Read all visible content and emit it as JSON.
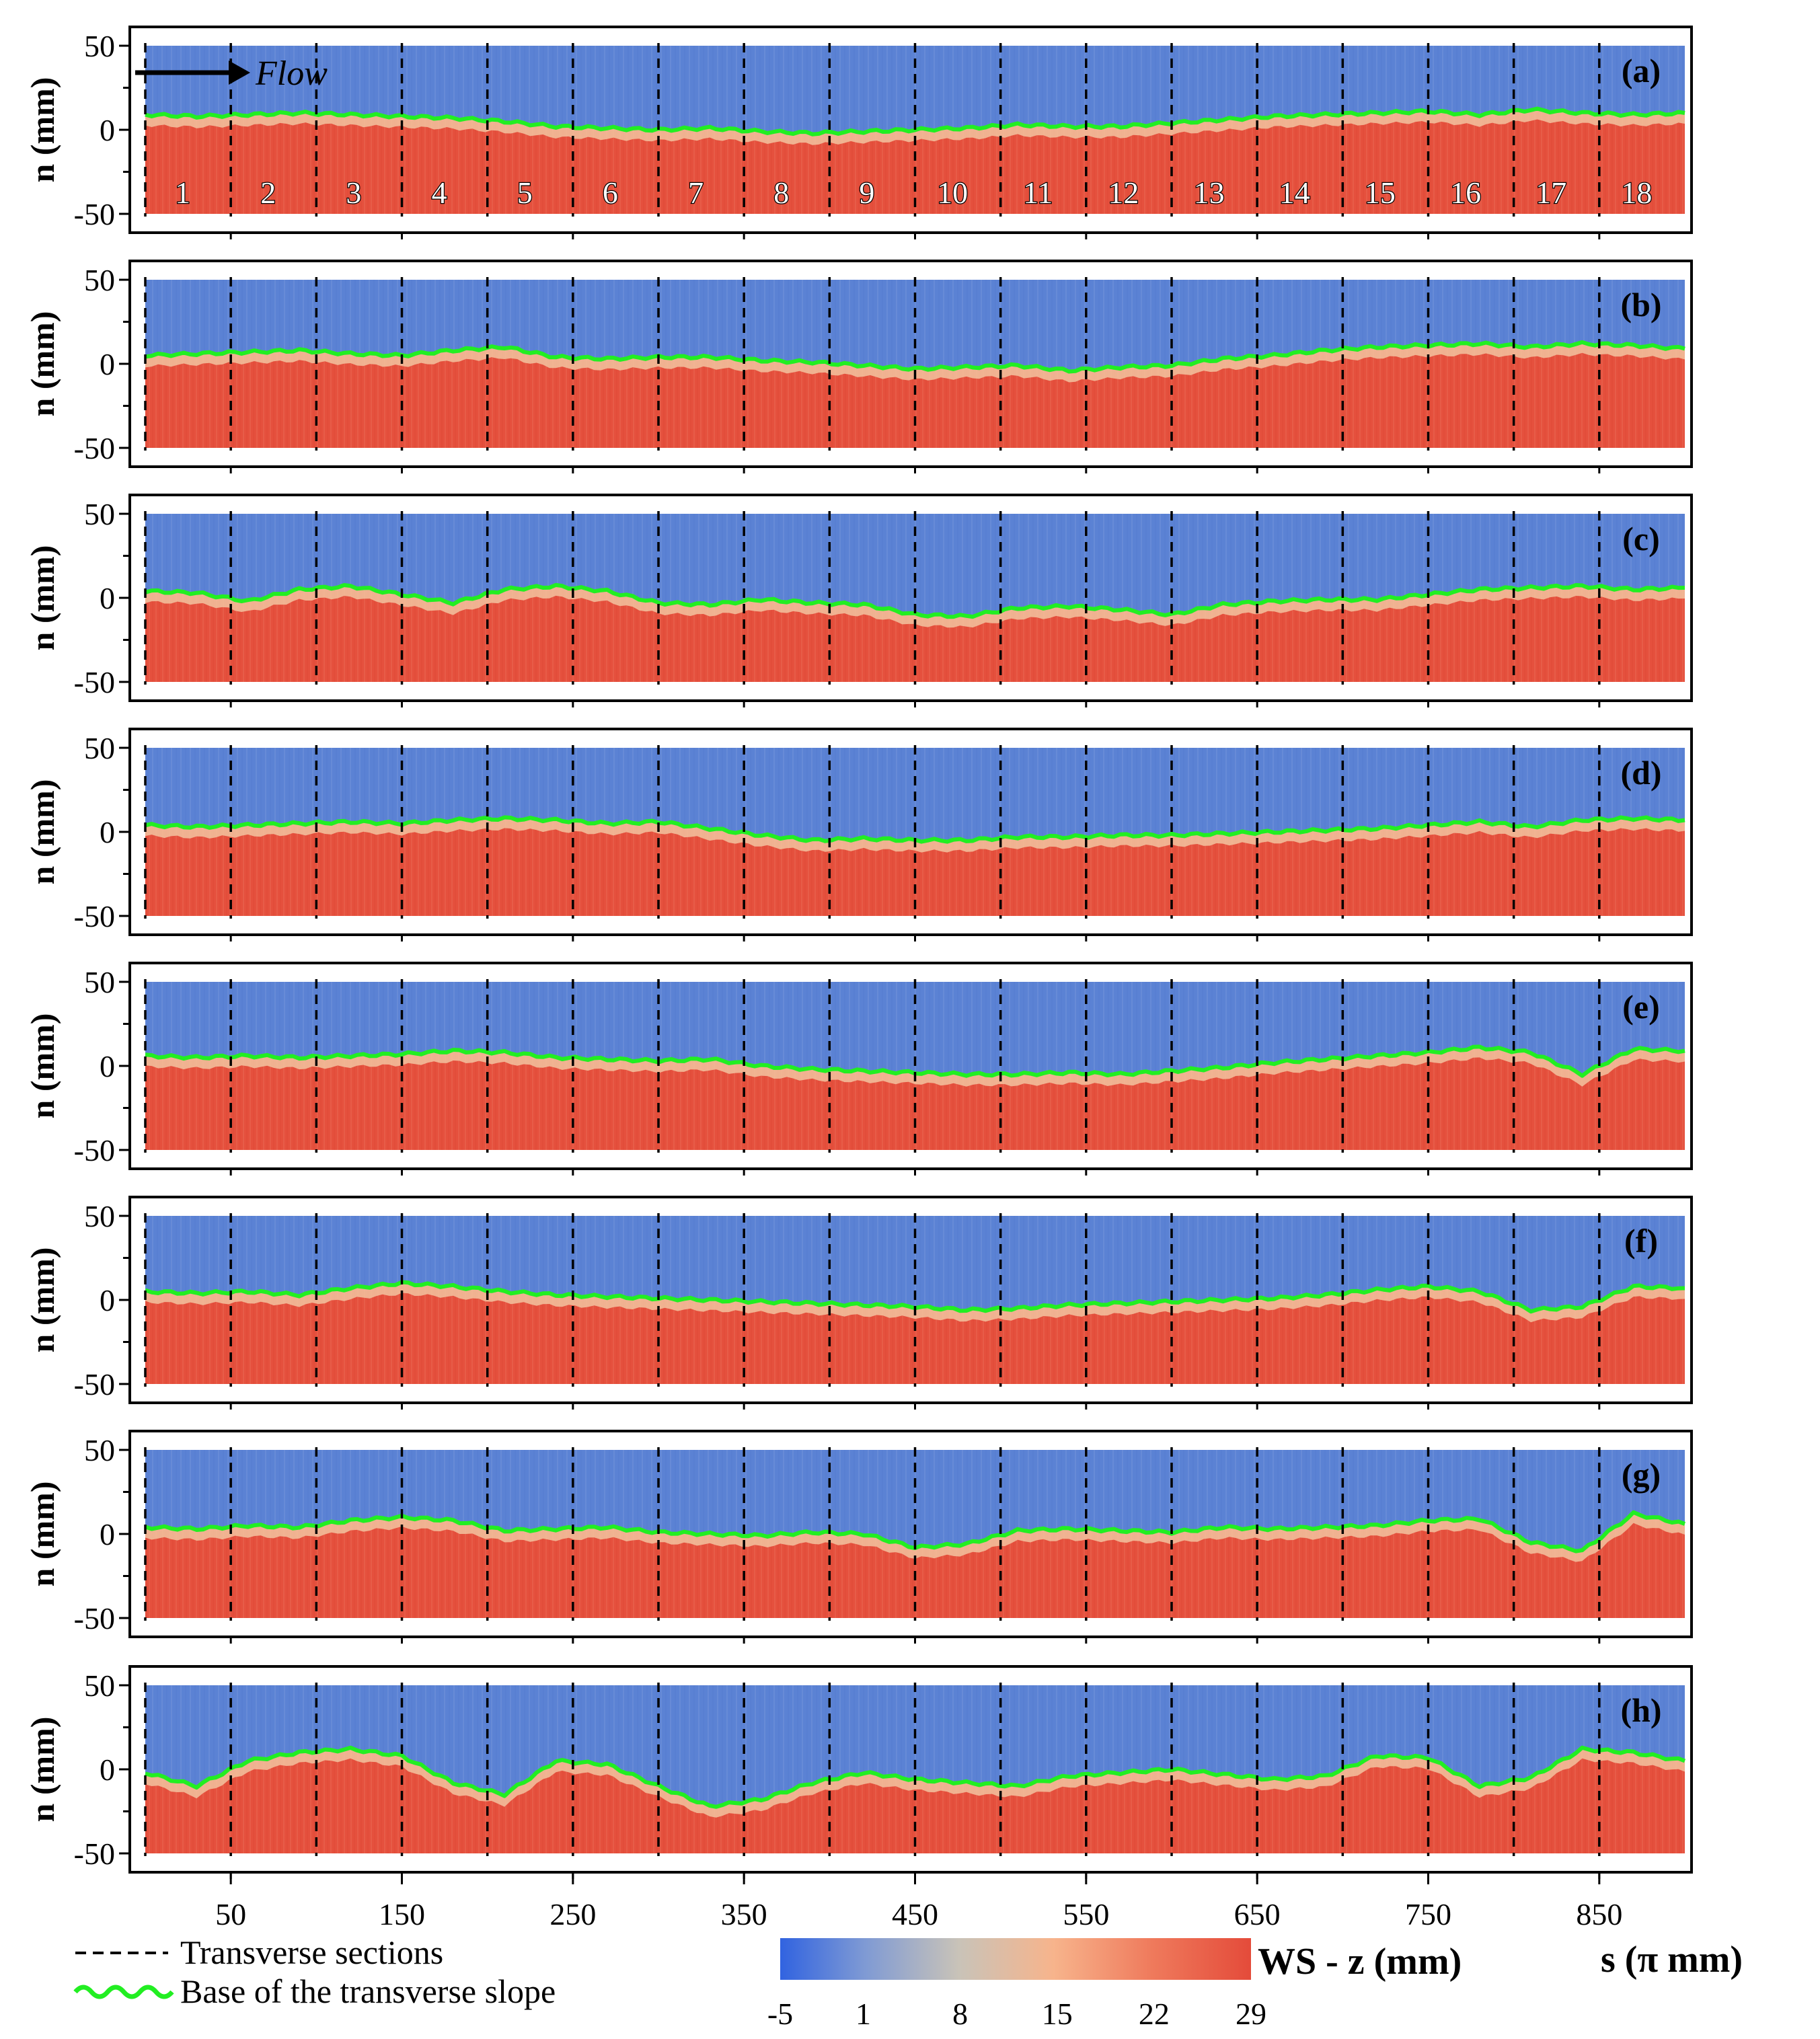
{
  "chart_data": {
    "type": "heatmap",
    "description_axes": {
      "ylabel": "n (mm)",
      "xlabel": "s (π mm)",
      "ylim": [
        -50,
        50
      ],
      "xlim": [
        0,
        900
      ],
      "y_ticks": [
        50,
        0,
        -50
      ],
      "x_ticks": [
        50,
        150,
        250,
        350,
        450,
        550,
        650,
        750,
        850
      ]
    },
    "panels": [
      {
        "label": "(a)",
        "base_n": [
          9,
          8,
          9,
          10,
          9,
          8,
          7,
          5,
          2,
          1,
          0,
          1,
          -1,
          -2,
          -1,
          0,
          1,
          3,
          2,
          2,
          4,
          6,
          8,
          9,
          10,
          11,
          9,
          12,
          10,
          9,
          10
        ]
      },
      {
        "label": "(b)",
        "base_n": [
          5,
          6,
          7,
          8,
          6,
          5,
          8,
          10,
          4,
          3,
          4,
          4,
          2,
          1,
          -1,
          -3,
          -2,
          -1,
          -4,
          -2,
          -1,
          3,
          5,
          8,
          10,
          11,
          12,
          10,
          12,
          11,
          9
        ]
      },
      {
        "label": "(c)",
        "base_n": [
          4,
          3,
          -2,
          5,
          7,
          2,
          -3,
          5,
          7,
          4,
          -3,
          -4,
          -1,
          -3,
          -4,
          -10,
          -11,
          -6,
          -5,
          -7,
          -10,
          -4,
          -2,
          -1,
          -1,
          2,
          5,
          6,
          7,
          5,
          6
        ]
      },
      {
        "label": "(d)",
        "base_n": [
          4,
          3,
          4,
          5,
          6,
          5,
          7,
          8,
          7,
          5,
          6,
          2,
          -2,
          -5,
          -4,
          -5,
          -5,
          -3,
          -3,
          -2,
          -2,
          -1,
          0,
          1,
          2,
          4,
          6,
          3,
          7,
          8,
          7
        ]
      },
      {
        "label": "(e)",
        "base_n": [
          6,
          5,
          6,
          5,
          6,
          7,
          9,
          8,
          5,
          4,
          3,
          4,
          0,
          -2,
          -3,
          -4,
          -5,
          -5,
          -4,
          -5,
          -3,
          -1,
          2,
          4,
          6,
          8,
          11,
          8,
          -5,
          10,
          9
        ]
      },
      {
        "label": "(f)",
        "base_n": [
          5,
          4,
          5,
          3,
          7,
          10,
          8,
          5,
          3,
          2,
          1,
          0,
          -1,
          -2,
          -3,
          -4,
          -6,
          -5,
          -3,
          -2,
          -1,
          0,
          1,
          3,
          6,
          8,
          5,
          -6,
          -4,
          8,
          7
        ]
      },
      {
        "label": "(g)",
        "base_n": [
          4,
          3,
          5,
          4,
          8,
          10,
          8,
          2,
          3,
          4,
          1,
          0,
          -1,
          1,
          0,
          -8,
          -6,
          2,
          3,
          2,
          1,
          4,
          3,
          4,
          5,
          8,
          9,
          -5,
          -10,
          12,
          6
        ]
      },
      {
        "label": "(h)",
        "base_n": [
          -2,
          -10,
          5,
          10,
          12,
          8,
          -8,
          -15,
          5,
          3,
          -10,
          -22,
          -18,
          -8,
          -2,
          -6,
          -8,
          -10,
          -4,
          -2,
          0,
          -3,
          -6,
          -4,
          8,
          7,
          -10,
          -5,
          12,
          10,
          5
        ]
      }
    ],
    "section_numbers": [
      "1",
      "2",
      "3",
      "4",
      "5",
      "6",
      "7",
      "8",
      "9",
      "10",
      "11",
      "12",
      "13",
      "14",
      "15",
      "16",
      "17",
      "18"
    ],
    "section_s": [
      0,
      50,
      100,
      150,
      200,
      250,
      300,
      350,
      400,
      450,
      500,
      550,
      600,
      650,
      700,
      750,
      800,
      850
    ],
    "colorbar": {
      "title": "WS - z (mm)",
      "tick_labels": [
        "-5",
        "1",
        "8",
        "15",
        "22",
        "29"
      ],
      "tick_values": [
        -5,
        1,
        8,
        15,
        22,
        29
      ],
      "range": [
        -5,
        29
      ],
      "colors": [
        "#3163e0",
        "#7f9ad4",
        "#c9c3b8",
        "#f7b48c",
        "#ef7a5c",
        "#e44b3a"
      ]
    },
    "legend": [
      {
        "label": "Transverse sections",
        "style": "dashed",
        "color": "#000000"
      },
      {
        "label": "Base of the transverse slope",
        "style": "wavy",
        "color": "#22ee22"
      }
    ],
    "annotation": "Flow"
  },
  "ytick_labels": [
    "50",
    "0",
    "-50"
  ],
  "xtick_labels": [
    "50",
    "150",
    "250",
    "350",
    "450",
    "550",
    "650",
    "750",
    "850"
  ],
  "colors": {
    "water": "#5b82d4",
    "bank": "#e5503d",
    "transition": "#f2c3a0",
    "base_line": "#22ee22",
    "frame": "#000000"
  }
}
